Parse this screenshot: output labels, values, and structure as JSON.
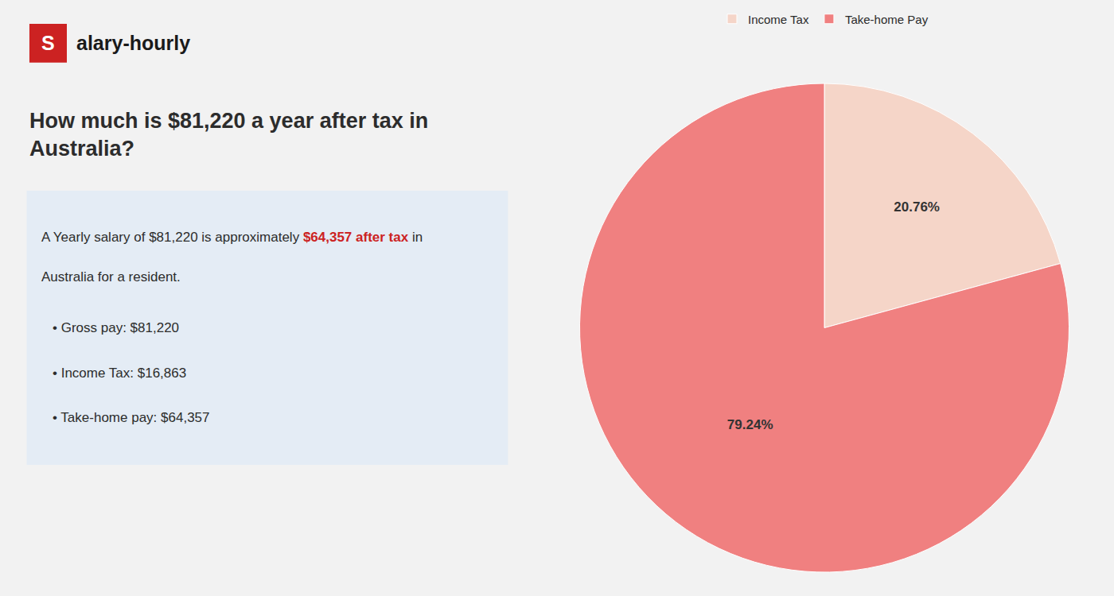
{
  "chart_data": {
    "type": "pie",
    "title": "How much is $81,220 a year after tax in\nAustralia?",
    "categories": [
      "Income Tax",
      "Take-home Pay"
    ],
    "values": [
      20.76,
      79.24
    ],
    "value_labels": [
      "20.76%",
      "79.24%"
    ],
    "data_labels": true,
    "colors": [
      "#f5d5c8",
      "#f08080"
    ],
    "legend": "top",
    "annotations": [
      "S",
      "alary-hourly",
      "A Yearly salary of $81,220 is approximately ",
      "$64,357 after tax",
      " in",
      "Australia for a resident.",
      "• Gross pay: $81,220",
      "• Income Tax: $16,863",
      "• Take-home pay: $64,357"
    ]
  }
}
